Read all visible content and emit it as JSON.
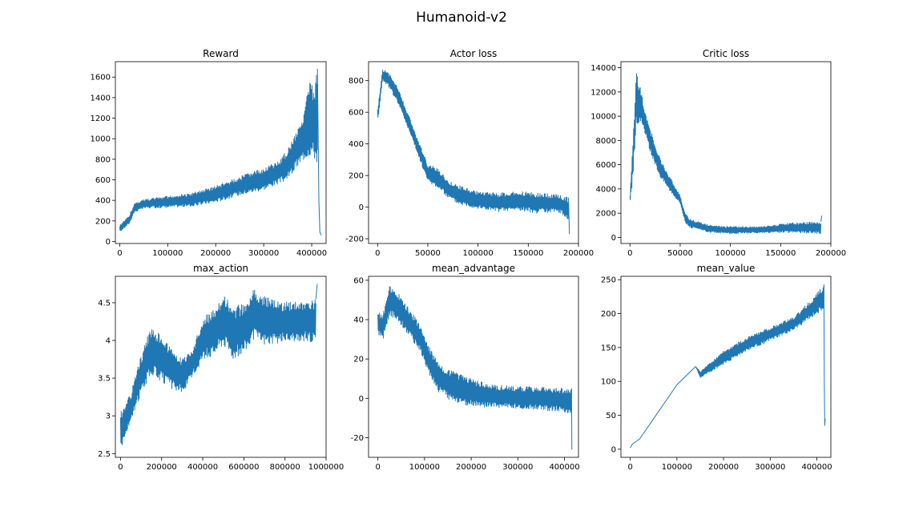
{
  "figure_title": "Humanoid-v2",
  "chart_data": [
    {
      "type": "line",
      "title": "Reward",
      "xlim": [
        -9000,
        430000
      ],
      "ylim": [
        -20,
        1750
      ],
      "xticks": [
        0,
        100000,
        200000,
        300000,
        400000
      ],
      "yticks": [
        0,
        200,
        400,
        600,
        800,
        1000,
        1200,
        1400,
        1600
      ],
      "series": [
        {
          "upper": [
            [
              0,
              160
            ],
            [
              20000,
              250
            ],
            [
              30000,
              370
            ],
            [
              50000,
              410
            ],
            [
              100000,
              440
            ],
            [
              150000,
              470
            ],
            [
              200000,
              540
            ],
            [
              250000,
              630
            ],
            [
              300000,
              720
            ],
            [
              330000,
              780
            ],
            [
              350000,
              900
            ],
            [
              370000,
              1100
            ],
            [
              385000,
              1300
            ],
            [
              395000,
              1550
            ],
            [
              405000,
              1500
            ],
            [
              412000,
              1680
            ]
          ],
          "lower": [
            [
              0,
              90
            ],
            [
              20000,
              170
            ],
            [
              30000,
              280
            ],
            [
              50000,
              320
            ],
            [
              100000,
              330
            ],
            [
              150000,
              340
            ],
            [
              200000,
              380
            ],
            [
              250000,
              450
            ],
            [
              300000,
              500
            ],
            [
              330000,
              560
            ],
            [
              350000,
              600
            ],
            [
              370000,
              720
            ],
            [
              385000,
              800
            ],
            [
              395000,
              830
            ],
            [
              405000,
              800
            ],
            [
              412000,
              750
            ]
          ],
          "tail": [
            [
              412000,
              1680
            ],
            [
              415000,
              400
            ],
            [
              417000,
              90
            ],
            [
              420000,
              60
            ]
          ]
        }
      ]
    },
    {
      "type": "line",
      "title": "Actor loss",
      "xlim": [
        -9000,
        200000
      ],
      "ylim": [
        -230,
        920
      ],
      "xticks": [
        0,
        50000,
        100000,
        150000,
        200000
      ],
      "yticks": [
        -200,
        0,
        200,
        400,
        600,
        800
      ],
      "series": [
        {
          "upper": [
            [
              0,
              620
            ],
            [
              5000,
              870
            ],
            [
              10000,
              860
            ],
            [
              20000,
              760
            ],
            [
              30000,
              600
            ],
            [
              40000,
              430
            ],
            [
              50000,
              270
            ],
            [
              60000,
              250
            ],
            [
              70000,
              170
            ],
            [
              80000,
              140
            ],
            [
              100000,
              100
            ],
            [
              120000,
              90
            ],
            [
              140000,
              100
            ],
            [
              160000,
              90
            ],
            [
              180000,
              80
            ],
            [
              190000,
              60
            ]
          ],
          "lower": [
            [
              0,
              530
            ],
            [
              5000,
              800
            ],
            [
              10000,
              770
            ],
            [
              20000,
              660
            ],
            [
              30000,
              500
            ],
            [
              40000,
              330
            ],
            [
              50000,
              160
            ],
            [
              60000,
              120
            ],
            [
              70000,
              60
            ],
            [
              80000,
              20
            ],
            [
              100000,
              -10
            ],
            [
              120000,
              -30
            ],
            [
              140000,
              -20
            ],
            [
              160000,
              -40
            ],
            [
              180000,
              -30
            ],
            [
              190000,
              -80
            ]
          ],
          "tail": [
            [
              190000,
              60
            ],
            [
              191000,
              -170
            ]
          ]
        }
      ]
    },
    {
      "type": "line",
      "title": "Critic loss",
      "xlim": [
        -9000,
        200000
      ],
      "ylim": [
        -500,
        14500
      ],
      "xticks": [
        0,
        50000,
        100000,
        150000,
        200000
      ],
      "yticks": [
        0,
        2000,
        4000,
        6000,
        8000,
        10000,
        12000,
        14000
      ],
      "series": [
        {
          "upper": [
            [
              0,
              3500
            ],
            [
              3000,
              8000
            ],
            [
              6000,
              13800
            ],
            [
              10000,
              12500
            ],
            [
              15000,
              10500
            ],
            [
              20000,
              9000
            ],
            [
              30000,
              6500
            ],
            [
              40000,
              5000
            ],
            [
              50000,
              3500
            ],
            [
              55000,
              2000
            ],
            [
              60000,
              1500
            ],
            [
              80000,
              1000
            ],
            [
              100000,
              900
            ],
            [
              130000,
              900
            ],
            [
              160000,
              1200
            ],
            [
              190000,
              1300
            ]
          ],
          "lower": [
            [
              0,
              2600
            ],
            [
              3000,
              5000
            ],
            [
              6000,
              9000
            ],
            [
              10000,
              9500
            ],
            [
              15000,
              8500
            ],
            [
              20000,
              7000
            ],
            [
              30000,
              5000
            ],
            [
              40000,
              3800
            ],
            [
              50000,
              2800
            ],
            [
              55000,
              1200
            ],
            [
              60000,
              800
            ],
            [
              80000,
              400
            ],
            [
              100000,
              300
            ],
            [
              130000,
              350
            ],
            [
              160000,
              400
            ],
            [
              190000,
              300
            ]
          ],
          "tail": [
            [
              190000,
              1300
            ],
            [
              191000,
              1800
            ]
          ]
        }
      ]
    },
    {
      "type": "line",
      "title": "max_action",
      "xlim": [
        -25000,
        1000000
      ],
      "ylim": [
        2.45,
        4.85
      ],
      "xticks": [
        0,
        200000,
        400000,
        600000,
        800000,
        1000000
      ],
      "yticks": [
        2.5,
        3.0,
        3.5,
        4.0,
        4.5
      ],
      "series": [
        {
          "upper": [
            [
              0,
              3.05
            ],
            [
              50000,
              3.3
            ],
            [
              100000,
              3.8
            ],
            [
              150000,
              4.2
            ],
            [
              200000,
              4.05
            ],
            [
              250000,
              3.9
            ],
            [
              300000,
              3.75
            ],
            [
              350000,
              3.9
            ],
            [
              400000,
              4.3
            ],
            [
              450000,
              4.4
            ],
            [
              500000,
              4.65
            ],
            [
              550000,
              4.45
            ],
            [
              600000,
              4.5
            ],
            [
              650000,
              4.7
            ],
            [
              700000,
              4.6
            ],
            [
              750000,
              4.55
            ],
            [
              800000,
              4.5
            ],
            [
              850000,
              4.55
            ],
            [
              900000,
              4.5
            ],
            [
              950000,
              4.55
            ]
          ],
          "lower": [
            [
              0,
              2.55
            ],
            [
              50000,
              2.9
            ],
            [
              100000,
              3.3
            ],
            [
              150000,
              3.55
            ],
            [
              200000,
              3.45
            ],
            [
              250000,
              3.35
            ],
            [
              300000,
              3.3
            ],
            [
              350000,
              3.5
            ],
            [
              400000,
              3.75
            ],
            [
              450000,
              3.8
            ],
            [
              500000,
              3.95
            ],
            [
              550000,
              3.75
            ],
            [
              600000,
              3.85
            ],
            [
              650000,
              4.0
            ],
            [
              700000,
              3.95
            ],
            [
              750000,
              3.95
            ],
            [
              800000,
              4.0
            ],
            [
              850000,
              3.95
            ],
            [
              900000,
              4.0
            ],
            [
              950000,
              3.95
            ]
          ],
          "tail": [
            [
              950000,
              4.55
            ],
            [
              957000,
              4.75
            ]
          ]
        }
      ]
    },
    {
      "type": "line",
      "title": "mean_advantage",
      "xlim": [
        -20000,
        430000
      ],
      "ylim": [
        -30,
        62
      ],
      "xticks": [
        0,
        100000,
        200000,
        300000,
        400000
      ],
      "yticks": [
        -20,
        0,
        20,
        40,
        60
      ],
      "series": [
        {
          "upper": [
            [
              0,
              45
            ],
            [
              10000,
              42
            ],
            [
              25000,
              57
            ],
            [
              40000,
              55
            ],
            [
              60000,
              48
            ],
            [
              90000,
              38
            ],
            [
              110000,
              27
            ],
            [
              130000,
              18
            ],
            [
              160000,
              14
            ],
            [
              200000,
              10
            ],
            [
              250000,
              7
            ],
            [
              300000,
              6
            ],
            [
              350000,
              6
            ],
            [
              400000,
              5
            ],
            [
              415000,
              5
            ]
          ],
          "lower": [
            [
              0,
              33
            ],
            [
              10000,
              29
            ],
            [
              25000,
              42
            ],
            [
              40000,
              40
            ],
            [
              60000,
              34
            ],
            [
              90000,
              24
            ],
            [
              110000,
              12
            ],
            [
              130000,
              3
            ],
            [
              160000,
              -2
            ],
            [
              200000,
              -4
            ],
            [
              250000,
              -5
            ],
            [
              300000,
              -5
            ],
            [
              350000,
              -6
            ],
            [
              400000,
              -7
            ],
            [
              415000,
              -8
            ]
          ],
          "tail": [
            [
              415000,
              5
            ],
            [
              416000,
              -26
            ]
          ]
        }
      ]
    },
    {
      "type": "line",
      "title": "mean_value",
      "xlim": [
        -20000,
        430000
      ],
      "ylim": [
        -12,
        255
      ],
      "xticks": [
        0,
        100000,
        200000,
        300000,
        400000
      ],
      "yticks": [
        0,
        50,
        100,
        150,
        200,
        250
      ],
      "series": [
        {
          "line": [
            [
              0,
              2
            ],
            [
              5000,
              8
            ],
            [
              20000,
              15
            ],
            [
              60000,
              55
            ],
            [
              100000,
              95
            ],
            [
              140000,
              122
            ]
          ],
          "upper": [
            [
              140000,
              122
            ],
            [
              150000,
              115
            ],
            [
              200000,
              145
            ],
            [
              250000,
              165
            ],
            [
              300000,
              180
            ],
            [
              350000,
              195
            ],
            [
              380000,
              215
            ],
            [
              400000,
              230
            ],
            [
              415000,
              243
            ]
          ],
          "lower": [
            [
              140000,
              122
            ],
            [
              150000,
              105
            ],
            [
              200000,
              125
            ],
            [
              250000,
              145
            ],
            [
              300000,
              160
            ],
            [
              350000,
              175
            ],
            [
              380000,
              190
            ],
            [
              400000,
              200
            ],
            [
              415000,
              205
            ]
          ],
          "tail": [
            [
              415000,
              243
            ],
            [
              416000,
              100
            ],
            [
              417000,
              35
            ],
            [
              418000,
              45
            ]
          ]
        }
      ]
    }
  ]
}
